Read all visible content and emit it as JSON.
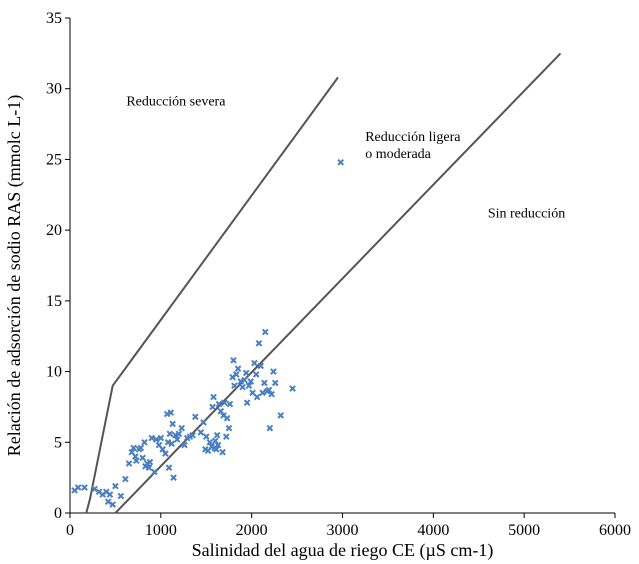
{
  "chart_data": {
    "type": "scatter",
    "xlabel": "Salinidad del agua de riego CE (µS cm-1)",
    "ylabel": "Relación de adsorción de sodio RAS (mmolc L-1)",
    "xlim": [
      0,
      6000
    ],
    "ylim": [
      0,
      35
    ],
    "xticks": [
      "0",
      "1000",
      "2000",
      "3000",
      "4000",
      "5000",
      "6000"
    ],
    "yticks": [
      "0",
      "5",
      "10",
      "15",
      "20",
      "25",
      "30",
      "35"
    ],
    "grid": false,
    "marker_color": "#4a7fc1",
    "line_color": "#555555",
    "boundary_lines": [
      {
        "points": [
          [
            180,
            0
          ],
          [
            220,
            1
          ],
          [
            470,
            9
          ],
          [
            2950,
            30.8
          ]
        ]
      },
      {
        "points": [
          [
            500,
            0
          ],
          [
            5400,
            32.5
          ]
        ]
      }
    ],
    "region_labels": [
      {
        "text": [
          "Reducción severa"
        ],
        "x": 620,
        "y": 28.8
      },
      {
        "text": [
          "Reducción ligera",
          "o moderada"
        ],
        "x": 3250,
        "y": 26.3
      },
      {
        "text": [
          "Sin reducción"
        ],
        "x": 4600,
        "y": 20.9
      }
    ],
    "points": [
      [
        50,
        1.6
      ],
      [
        90,
        1.8
      ],
      [
        160,
        1.8
      ],
      [
        270,
        1.7
      ],
      [
        320,
        1.5
      ],
      [
        360,
        1.3
      ],
      [
        400,
        1.5
      ],
      [
        420,
        0.8
      ],
      [
        440,
        1.3
      ],
      [
        470,
        0.6
      ],
      [
        500,
        1.9
      ],
      [
        560,
        1.2
      ],
      [
        610,
        2.4
      ],
      [
        650,
        3.5
      ],
      [
        680,
        4.3
      ],
      [
        700,
        4.6
      ],
      [
        720,
        4.0
      ],
      [
        730,
        3.7
      ],
      [
        760,
        4.5
      ],
      [
        780,
        4.6
      ],
      [
        800,
        3.9
      ],
      [
        820,
        5.0
      ],
      [
        830,
        3.3
      ],
      [
        850,
        3.5
      ],
      [
        870,
        3.2
      ],
      [
        880,
        3.6
      ],
      [
        900,
        5.3
      ],
      [
        930,
        2.9
      ],
      [
        950,
        5.2
      ],
      [
        980,
        4.8
      ],
      [
        1000,
        5.3
      ],
      [
        1020,
        4.5
      ],
      [
        1050,
        4.2
      ],
      [
        1080,
        5.0
      ],
      [
        1100,
        5.6
      ],
      [
        1120,
        4.9
      ],
      [
        1130,
        6.3
      ],
      [
        1160,
        5.5
      ],
      [
        1180,
        5.2
      ],
      [
        1200,
        5.6
      ],
      [
        1230,
        6.0
      ],
      [
        1260,
        4.8
      ],
      [
        1290,
        5.3
      ],
      [
        1320,
        5.4
      ],
      [
        1350,
        5.5
      ],
      [
        1380,
        6.8
      ],
      [
        1070,
        7.0
      ],
      [
        1090,
        3.2
      ],
      [
        1140,
        2.5
      ],
      [
        1110,
        7.1
      ],
      [
        1440,
        5.7
      ],
      [
        1470,
        6.4
      ],
      [
        1490,
        4.5
      ],
      [
        1500,
        5.4
      ],
      [
        1520,
        4.4
      ],
      [
        1540,
        5.0
      ],
      [
        1560,
        4.7
      ],
      [
        1570,
        7.5
      ],
      [
        1580,
        8.2
      ],
      [
        1590,
        4.6
      ],
      [
        1600,
        5.1
      ],
      [
        1610,
        4.5
      ],
      [
        1620,
        5.5
      ],
      [
        1630,
        4.8
      ],
      [
        1640,
        7.7
      ],
      [
        1660,
        7.2
      ],
      [
        1680,
        4.3
      ],
      [
        1690,
        6.9
      ],
      [
        1700,
        7.8
      ],
      [
        1720,
        5.4
      ],
      [
        1730,
        6.7
      ],
      [
        1750,
        6.0
      ],
      [
        1760,
        7.7
      ],
      [
        1790,
        9.6
      ],
      [
        1800,
        10.8
      ],
      [
        1810,
        9.0
      ],
      [
        1830,
        9.8
      ],
      [
        1850,
        10.2
      ],
      [
        1880,
        9.3
      ],
      [
        1900,
        8.9
      ],
      [
        1920,
        9.4
      ],
      [
        1940,
        9.9
      ],
      [
        1950,
        7.8
      ],
      [
        1970,
        9.0
      ],
      [
        1990,
        9.3
      ],
      [
        2010,
        8.5
      ],
      [
        2030,
        10.6
      ],
      [
        2050,
        9.8
      ],
      [
        2060,
        8.2
      ],
      [
        2080,
        12.0
      ],
      [
        2100,
        10.4
      ],
      [
        2120,
        8.5
      ],
      [
        2140,
        9.2
      ],
      [
        2150,
        12.8
      ],
      [
        2170,
        8.6
      ],
      [
        2190,
        8.7
      ],
      [
        2200,
        6.0
      ],
      [
        2220,
        8.4
      ],
      [
        2240,
        10.0
      ],
      [
        2260,
        9.2
      ],
      [
        2320,
        6.9
      ],
      [
        2450,
        8.8
      ],
      [
        2980,
        24.8
      ]
    ]
  }
}
